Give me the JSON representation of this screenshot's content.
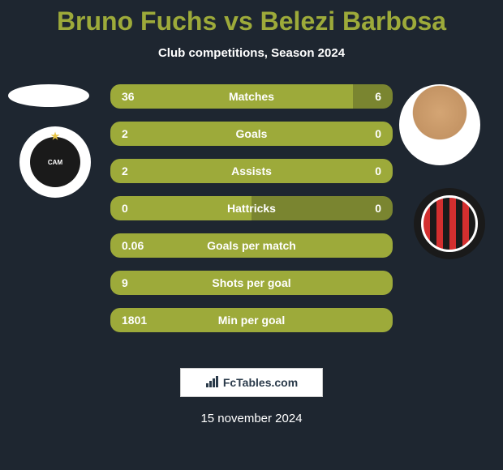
{
  "title": "Bruno Fuchs vs Belezi Barbosa",
  "subtitle": "Club competitions, Season 2024",
  "date": "15 november 2024",
  "footer_brand": "FcTables.com",
  "colors": {
    "background": "#1e2630",
    "accent": "#9daa3a",
    "bar_left": "#9daa3a",
    "bar_right": "#7a8530",
    "text_white": "#ffffff"
  },
  "players": {
    "left": {
      "name": "Bruno Fuchs",
      "club_abbr": "CAM"
    },
    "right": {
      "name": "Belezi Barbosa",
      "club_abbr": "CAP"
    }
  },
  "stats": [
    {
      "label": "Matches",
      "left_value": "36",
      "right_value": "6",
      "left_pct": 86,
      "right_pct": 14
    },
    {
      "label": "Goals",
      "left_value": "2",
      "right_value": "0",
      "left_pct": 100,
      "right_pct": 0
    },
    {
      "label": "Assists",
      "left_value": "2",
      "right_value": "0",
      "left_pct": 100,
      "right_pct": 0
    },
    {
      "label": "Hattricks",
      "left_value": "0",
      "right_value": "0",
      "left_pct": 50,
      "right_pct": 50
    },
    {
      "label": "Goals per match",
      "left_value": "0.06",
      "right_value": "",
      "left_pct": 100,
      "right_pct": 0
    },
    {
      "label": "Shots per goal",
      "left_value": "9",
      "right_value": "",
      "left_pct": 100,
      "right_pct": 0
    },
    {
      "label": "Min per goal",
      "left_value": "1801",
      "right_value": "",
      "left_pct": 100,
      "right_pct": 0
    }
  ]
}
